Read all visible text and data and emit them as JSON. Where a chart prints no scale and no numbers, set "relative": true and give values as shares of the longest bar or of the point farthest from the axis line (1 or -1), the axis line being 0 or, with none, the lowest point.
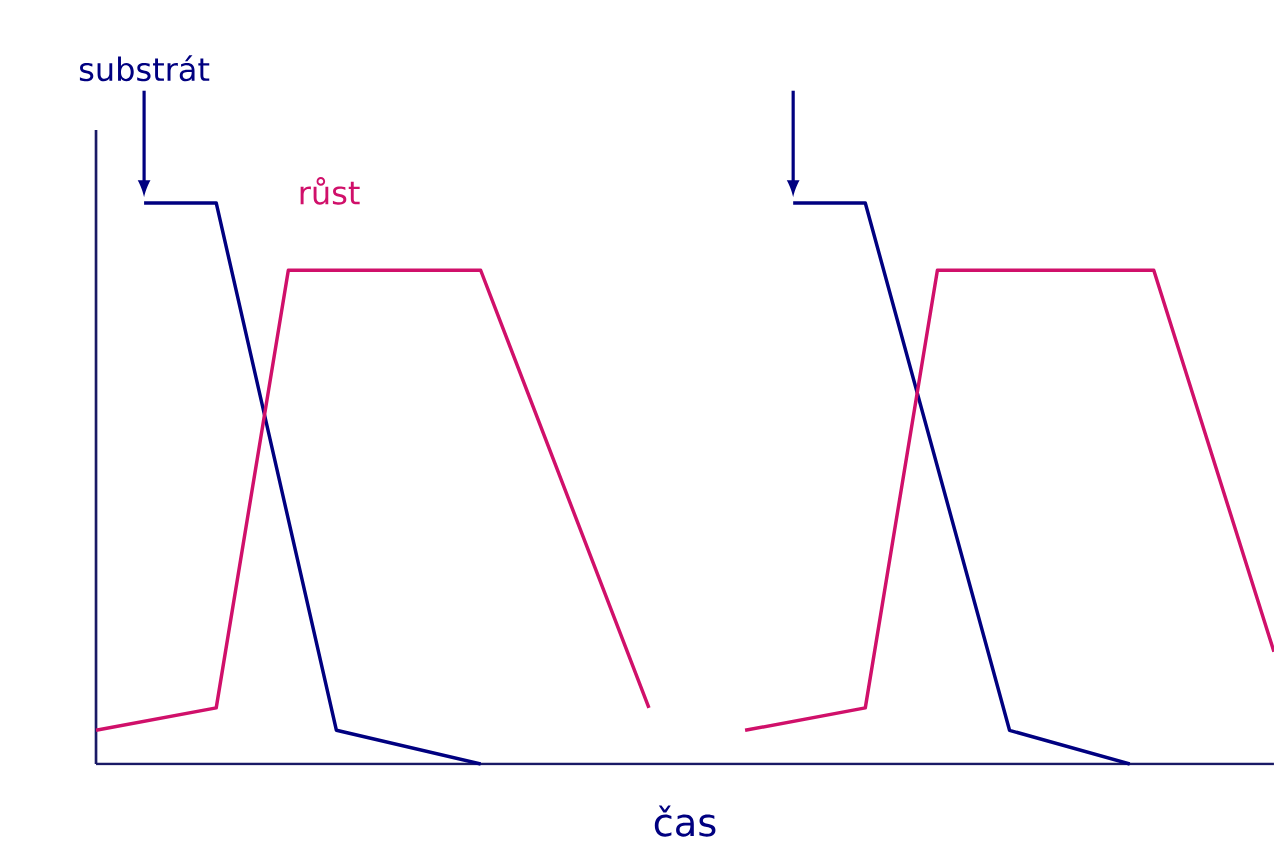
{
  "chart_data": {
    "type": "line",
    "relative": true,
    "xlabel": "čas",
    "marker": "none",
    "line_style": "solid",
    "categories": [
      null,
      null,
      null,
      null,
      null,
      null,
      null,
      null,
      null,
      null,
      null,
      null,
      null,
      null,
      null,
      null,
      null,
      null,
      null,
      null,
      null,
      null,
      null,
      null,
      null,
      null,
      null,
      null,
      null,
      null,
      null,
      null,
      null,
      null,
      null,
      null,
      null,
      null,
      null,
      null,
      null,
      null,
      null,
      null,
      null,
      null,
      null,
      null,
      null,
      null
    ],
    "series": [
      {
        "name": "substrát",
        "color": "#000080",
        "values": [
          null,
          null,
          1,
          null,
          null,
          1,
          null,
          null,
          null,
          null,
          0.06,
          null,
          null,
          null,
          null,
          null,
          0,
          null,
          null,
          null,
          null,
          null,
          null,
          null,
          null,
          null,
          null,
          null,
          null,
          null,
          null,
          null,
          null,
          null,
          null,
          null,
          null,
          null,
          null,
          null,
          null,
          null,
          null,
          null,
          null,
          null,
          null,
          null,
          null,
          null
        ]
      },
      {
        "color": "#000080",
        "values": [
          null,
          null,
          null,
          null,
          null,
          null,
          null,
          null,
          null,
          null,
          null,
          null,
          null,
          null,
          null,
          null,
          null,
          null,
          null,
          null,
          null,
          null,
          null,
          null,
          null,
          null,
          null,
          null,
          null,
          1,
          null,
          null,
          1,
          null,
          null,
          null,
          null,
          null,
          0.06,
          null,
          null,
          null,
          null,
          0,
          null,
          null,
          null,
          null,
          null,
          null
        ]
      },
      {
        "name": "růst",
        "color": "#d0106a",
        "values": [
          0.06,
          null,
          null,
          null,
          null,
          0.1,
          null,
          null,
          0.88,
          null,
          null,
          null,
          null,
          null,
          null,
          null,
          0.88,
          null,
          null,
          null,
          null,
          null,
          null,
          0.1,
          null,
          null,
          null,
          null,
          null,
          null,
          null,
          null,
          null,
          null,
          null,
          null,
          null,
          null,
          null,
          null,
          null,
          null,
          null,
          null,
          null,
          null,
          null,
          null,
          null,
          null
        ]
      },
      {
        "color": "#d0106a",
        "values": [
          null,
          null,
          null,
          null,
          null,
          null,
          null,
          null,
          null,
          null,
          null,
          null,
          null,
          null,
          null,
          null,
          null,
          null,
          null,
          null,
          null,
          null,
          null,
          null,
          null,
          null,
          null,
          0.06,
          null,
          null,
          null,
          null,
          0.1,
          null,
          null,
          0.88,
          null,
          null,
          null,
          null,
          null,
          null,
          null,
          null,
          0.88,
          null,
          null,
          null,
          null,
          0.2
        ]
      }
    ]
  }
}
